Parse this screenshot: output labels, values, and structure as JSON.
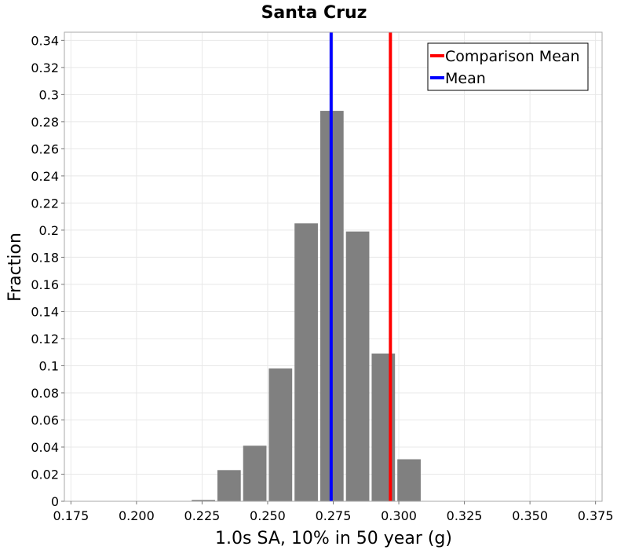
{
  "chart_data": {
    "type": "bar",
    "title": "Santa Cruz",
    "xlabel": "1.0s SA, 10% in 50 year (g)",
    "ylabel": "Fraction",
    "xlim": [
      0.1725,
      0.3775
    ],
    "ylim": [
      0,
      0.346
    ],
    "x_ticks": [
      "0.175",
      "0.200",
      "0.225",
      "0.250",
      "0.275",
      "0.300",
      "0.325",
      "0.350",
      "0.375"
    ],
    "y_ticks": [
      "0",
      "0.02",
      "0.04",
      "0.06",
      "0.08",
      "0.1",
      "0.12",
      "0.14",
      "0.16",
      "0.18",
      "0.2",
      "0.22",
      "0.24",
      "0.26",
      "0.28",
      "0.3",
      "0.32",
      "0.34"
    ],
    "grid": true,
    "bin_width": 0.0098,
    "bars": [
      {
        "x": 0.2255,
        "value": 0.001
      },
      {
        "x": 0.2353,
        "value": 0.023
      },
      {
        "x": 0.2451,
        "value": 0.041
      },
      {
        "x": 0.2549,
        "value": 0.098
      },
      {
        "x": 0.2647,
        "value": 0.205
      },
      {
        "x": 0.2745,
        "value": 0.288
      },
      {
        "x": 0.2843,
        "value": 0.199
      },
      {
        "x": 0.2941,
        "value": 0.109
      },
      {
        "x": 0.3039,
        "value": 0.031
      }
    ],
    "bar_color": "#808080",
    "lines": [
      {
        "name": "Comparison Mean",
        "x": 0.2968,
        "color": "#ff0000"
      },
      {
        "name": "Mean",
        "x": 0.2742,
        "color": "#0000ff"
      }
    ],
    "legend_position": "top-right"
  }
}
